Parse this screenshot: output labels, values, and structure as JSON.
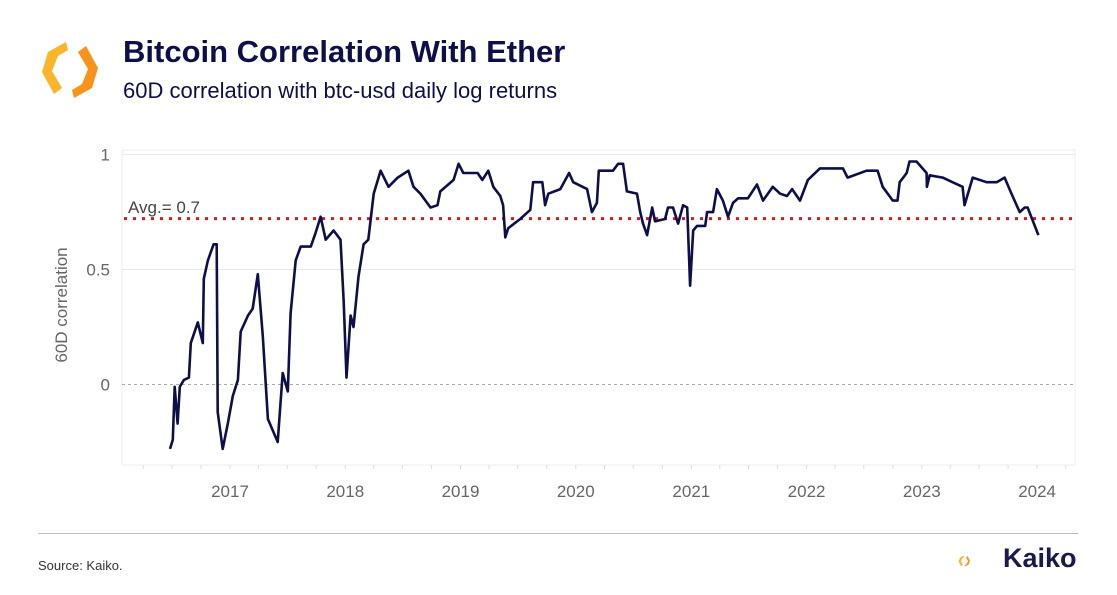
{
  "header": {
    "title": "Bitcoin Correlation With Ether",
    "subtitle": "60D correlation with btc-usd daily log returns",
    "logo": "kaiko-logo-icon"
  },
  "footer": {
    "source": "Source: Kaiko.",
    "brand": "Kaiko"
  },
  "colors": {
    "line": "#0d0f4a",
    "avg_line": "#e0141e",
    "title": "#0d0f4a",
    "logo_orange": "#f7931a",
    "logo_yellow": "#fbb52b"
  },
  "chart_data": {
    "type": "line",
    "title": "Bitcoin Correlation With Ether",
    "subtitle": "60D correlation with btc-usd daily log returns",
    "xlabel": "",
    "ylabel": "60D correlation",
    "x_ticks": [
      "2017",
      "2018",
      "2019",
      "2020",
      "2021",
      "2022",
      "2023",
      "2024"
    ],
    "y_ticks": [
      0,
      0.5,
      1
    ],
    "y_tick_labels": [
      "0",
      "0.5",
      "1"
    ],
    "xlim": [
      "2016-01-25",
      "2024-04-30"
    ],
    "ylim": [
      -0.35,
      1.02
    ],
    "grid": true,
    "annotation": {
      "label": "Avg.= 0.7",
      "value": 0.7
    },
    "series": [
      {
        "points": [
          [
            "2016-06-25",
            -0.28
          ],
          [
            "2016-07-04",
            -0.24
          ],
          [
            "2016-07-10",
            -0.01
          ],
          [
            "2016-07-19",
            -0.17
          ],
          [
            "2016-07-26",
            -0.01
          ],
          [
            "2016-08-08",
            0.02
          ],
          [
            "2016-08-24",
            0.03
          ],
          [
            "2016-08-30",
            0.18
          ],
          [
            "2016-09-21",
            0.27
          ],
          [
            "2016-10-07",
            0.18
          ],
          [
            "2016-10-10",
            0.46
          ],
          [
            "2016-10-23",
            0.54
          ],
          [
            "2016-11-10",
            0.61
          ],
          [
            "2016-11-20",
            0.61
          ],
          [
            "2016-11-23",
            -0.12
          ],
          [
            "2016-12-09",
            -0.28
          ],
          [
            "2016-12-25",
            -0.17
          ],
          [
            "2017-01-10",
            -0.05
          ],
          [
            "2017-01-26",
            0.02
          ],
          [
            "2017-02-04",
            0.23
          ],
          [
            "2017-02-27",
            0.3
          ],
          [
            "2017-03-14",
            0.33
          ],
          [
            "2017-03-30",
            0.48
          ],
          [
            "2017-04-15",
            0.21
          ],
          [
            "2017-05-01",
            -0.15
          ],
          [
            "2017-06-01",
            -0.25
          ],
          [
            "2017-06-17",
            0.05
          ],
          [
            "2017-07-03",
            -0.03
          ],
          [
            "2017-07-12",
            0.31
          ],
          [
            "2017-07-28",
            0.54
          ],
          [
            "2017-08-13",
            0.6
          ],
          [
            "2017-09-14",
            0.6
          ],
          [
            "2017-09-29",
            0.66
          ],
          [
            "2017-10-15",
            0.73
          ],
          [
            "2017-10-31",
            0.63
          ],
          [
            "2017-11-25",
            0.67
          ],
          [
            "2017-12-17",
            0.63
          ],
          [
            "2017-12-27",
            0.36
          ],
          [
            "2018-01-05",
            0.03
          ],
          [
            "2018-01-18",
            0.3
          ],
          [
            "2018-01-27",
            0.25
          ],
          [
            "2018-02-12",
            0.47
          ],
          [
            "2018-02-28",
            0.61
          ],
          [
            "2018-03-15",
            0.63
          ],
          [
            "2018-04-01",
            0.83
          ],
          [
            "2018-04-23",
            0.93
          ],
          [
            "2018-05-18",
            0.86
          ],
          [
            "2018-06-16",
            0.9
          ],
          [
            "2018-07-20",
            0.93
          ],
          [
            "2018-08-05",
            0.86
          ],
          [
            "2018-08-27",
            0.83
          ],
          [
            "2018-09-28",
            0.77
          ],
          [
            "2018-10-20",
            0.78
          ],
          [
            "2018-10-29",
            0.84
          ],
          [
            "2018-12-10",
            0.89
          ],
          [
            "2018-12-26",
            0.96
          ],
          [
            "2019-01-10",
            0.92
          ],
          [
            "2019-02-24",
            0.92
          ],
          [
            "2019-03-11",
            0.89
          ],
          [
            "2019-03-30",
            0.93
          ],
          [
            "2019-04-15",
            0.86
          ],
          [
            "2019-05-07",
            0.82
          ],
          [
            "2019-05-16",
            0.78
          ],
          [
            "2019-05-23",
            0.64
          ],
          [
            "2019-06-01",
            0.68
          ],
          [
            "2019-07-09",
            0.72
          ],
          [
            "2019-08-10",
            0.76
          ],
          [
            "2019-08-19",
            0.88
          ],
          [
            "2019-09-17",
            0.88
          ],
          [
            "2019-09-26",
            0.78
          ],
          [
            "2019-10-06",
            0.83
          ],
          [
            "2019-11-13",
            0.85
          ],
          [
            "2019-12-11",
            0.92
          ],
          [
            "2019-12-24",
            0.88
          ],
          [
            "2020-02-06",
            0.85
          ],
          [
            "2020-02-21",
            0.75
          ],
          [
            "2020-03-08",
            0.79
          ],
          [
            "2020-03-14",
            0.93
          ],
          [
            "2020-04-28",
            0.93
          ],
          [
            "2020-05-14",
            0.96
          ],
          [
            "2020-05-30",
            0.96
          ],
          [
            "2020-06-11",
            0.84
          ],
          [
            "2020-07-13",
            0.83
          ],
          [
            "2020-07-23",
            0.75
          ],
          [
            "2020-08-01",
            0.7
          ],
          [
            "2020-08-14",
            0.65
          ],
          [
            "2020-08-30",
            0.77
          ],
          [
            "2020-09-08",
            0.71
          ],
          [
            "2020-10-10",
            0.72
          ],
          [
            "2020-10-19",
            0.77
          ],
          [
            "2020-11-04",
            0.77
          ],
          [
            "2020-11-20",
            0.7
          ],
          [
            "2020-12-06",
            0.78
          ],
          [
            "2020-12-19",
            0.77
          ],
          [
            "2020-12-28",
            0.43
          ],
          [
            "2021-01-07",
            0.67
          ],
          [
            "2021-01-19",
            0.69
          ],
          [
            "2021-02-14",
            0.69
          ],
          [
            "2021-02-20",
            0.75
          ],
          [
            "2021-03-11",
            0.75
          ],
          [
            "2021-03-23",
            0.85
          ],
          [
            "2021-04-11",
            0.8
          ],
          [
            "2021-04-27",
            0.73
          ],
          [
            "2021-05-13",
            0.79
          ],
          [
            "2021-05-29",
            0.81
          ],
          [
            "2021-06-29",
            0.81
          ],
          [
            "2021-07-28",
            0.87
          ],
          [
            "2021-08-16",
            0.8
          ],
          [
            "2021-09-16",
            0.86
          ],
          [
            "2021-10-09",
            0.83
          ],
          [
            "2021-10-31",
            0.82
          ],
          [
            "2021-11-16",
            0.85
          ],
          [
            "2021-12-11",
            0.8
          ],
          [
            "2022-01-05",
            0.89
          ],
          [
            "2022-02-12",
            0.94
          ],
          [
            "2022-04-26",
            0.94
          ],
          [
            "2022-05-11",
            0.9
          ],
          [
            "2022-07-10",
            0.93
          ],
          [
            "2022-08-14",
            0.93
          ],
          [
            "2022-08-30",
            0.86
          ],
          [
            "2022-10-01",
            0.8
          ],
          [
            "2022-10-16",
            0.8
          ],
          [
            "2022-10-23",
            0.88
          ],
          [
            "2022-11-14",
            0.92
          ],
          [
            "2022-11-23",
            0.97
          ],
          [
            "2022-12-15",
            0.97
          ],
          [
            "2023-01-16",
            0.92
          ],
          [
            "2023-01-17",
            0.86
          ],
          [
            "2023-01-26",
            0.91
          ],
          [
            "2023-03-08",
            0.9
          ],
          [
            "2023-04-08",
            0.88
          ],
          [
            "2023-05-10",
            0.86
          ],
          [
            "2023-05-16",
            0.78
          ],
          [
            "2023-06-11",
            0.9
          ],
          [
            "2023-07-25",
            0.88
          ],
          [
            "2023-08-26",
            0.88
          ],
          [
            "2023-09-20",
            0.9
          ],
          [
            "2023-10-12",
            0.83
          ],
          [
            "2023-11-07",
            0.75
          ],
          [
            "2023-11-23",
            0.77
          ],
          [
            "2023-12-02",
            0.77
          ],
          [
            "2024-01-05",
            0.65
          ]
        ]
      }
    ]
  }
}
